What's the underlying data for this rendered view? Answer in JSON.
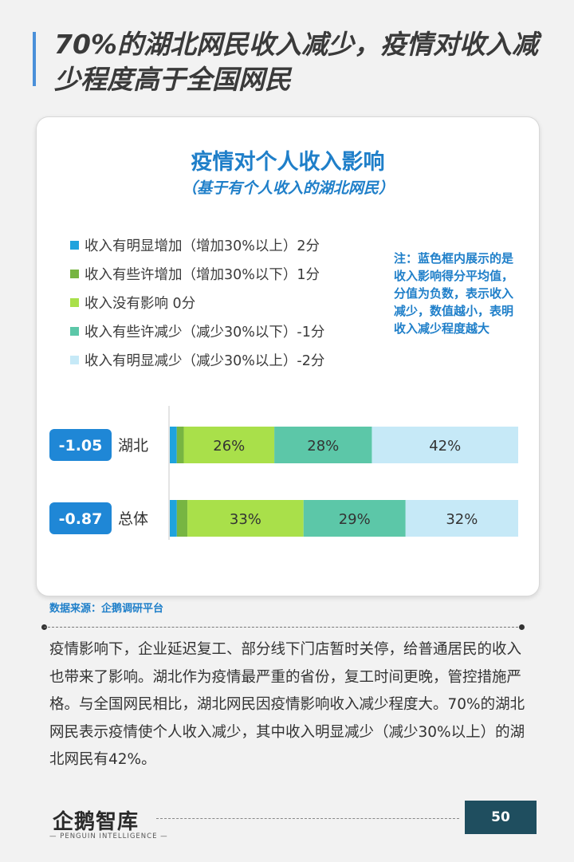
{
  "header": {
    "title": "70%的湖北网民收入减少，疫情对收入减少程度高于全国网民"
  },
  "chart_data": {
    "type": "bar",
    "title": "疫情对个人收入影响",
    "subtitle": "（基于有个人收入的湖北网民）",
    "legend": [
      {
        "label": "收入有明显增加（增加30%以上）2分",
        "color": "#1fa3dd"
      },
      {
        "label": "收入有些许增加（增加30%以下）1分",
        "color": "#77b542"
      },
      {
        "label": "收入没有影响 0分",
        "color": "#a9e04a"
      },
      {
        "label": "收入有些许减少（减少30%以下）-1分",
        "color": "#5cc7a8"
      },
      {
        "label": "收入有明显减少（减少30%以上）-2分",
        "color": "#c6e9f7"
      }
    ],
    "note": "注：蓝色框内展示的是收入影响得分平均值，分值为负数，表示收入减少，数值越小，表明收入减少程度越大",
    "categories": [
      "湖北",
      "总体"
    ],
    "scores": [
      "-1.05",
      "-0.87"
    ],
    "series": [
      {
        "name": "收入有明显增加（增加30%以上）2分",
        "color": "#1fa3dd",
        "values": [
          2,
          2
        ],
        "label": [
          "",
          ""
        ]
      },
      {
        "name": "收入有些许增加（增加30%以下）1分",
        "color": "#77b542",
        "values": [
          2,
          3
        ],
        "label": [
          "",
          ""
        ]
      },
      {
        "name": "收入没有影响 0分",
        "color": "#a9e04a",
        "values": [
          26,
          33
        ],
        "label": [
          "26%",
          "33%"
        ]
      },
      {
        "name": "收入有些许减少（减少30%以下）-1分",
        "color": "#5cc7a8",
        "values": [
          28,
          29
        ],
        "label": [
          "28%",
          "29%"
        ]
      },
      {
        "name": "收入有明显减少（减少30%以上）-2分",
        "color": "#c6e9f7",
        "values": [
          42,
          32
        ],
        "label": [
          "42%",
          "32%"
        ]
      }
    ],
    "stacked": true,
    "orientation": "horizontal",
    "xlim": [
      0,
      100
    ]
  },
  "source": "数据来源：企鹅调研平台",
  "body": "疫情影响下，企业延迟复工、部分线下门店暂时关停，给普通居民的收入也带来了影响。湖北作为疫情最严重的省份，复工时间更晚，管控措施严格。与全国网民相比，湖北网民因疫情影响收入减少程度大。70%的湖北网民表示疫情使个人收入减少，其中收入明显减少（减少30%以上）的湖北网民有42%。",
  "footer": {
    "logo": "企鹅智库",
    "logo_sub": "— PENGUIN  INTELLIGENCE —",
    "page": "50"
  }
}
